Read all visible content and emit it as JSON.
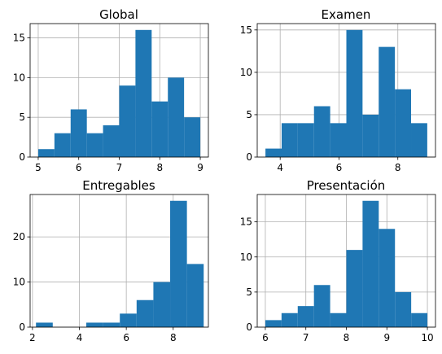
{
  "chart_data": [
    {
      "type": "bar",
      "title": "Global",
      "xlim": [
        4.8,
        9.2
      ],
      "ylim": [
        0,
        16.8
      ],
      "xticks": [
        5,
        6,
        7,
        8,
        9
      ],
      "yticks": [
        0,
        5,
        10,
        15
      ],
      "bins": [
        5.0,
        5.4,
        5.8,
        6.2,
        6.6,
        7.0,
        7.4,
        7.8,
        8.2,
        8.6,
        9.0
      ],
      "counts": [
        1,
        3,
        6,
        3,
        4,
        9,
        16,
        7,
        10,
        5
      ],
      "grid": true
    },
    {
      "type": "bar",
      "title": "Examen",
      "xlim": [
        3.22,
        9.28
      ],
      "ylim": [
        0,
        15.75
      ],
      "xticks": [
        4,
        6,
        8
      ],
      "yticks": [
        0,
        5,
        10,
        15
      ],
      "bins": [
        3.5,
        4.05,
        4.6,
        5.15,
        5.7,
        6.25,
        6.8,
        7.35,
        7.9,
        8.45,
        9.0
      ],
      "counts": [
        1,
        4,
        4,
        6,
        4,
        15,
        5,
        13,
        8,
        4
      ],
      "grid": true
    },
    {
      "type": "bar",
      "title": "Entregables",
      "xlim": [
        1.9,
        9.5
      ],
      "ylim": [
        0,
        29.4
      ],
      "xticks": [
        2,
        4,
        6,
        8
      ],
      "yticks": [
        0,
        10,
        20
      ],
      "bins": [
        2.15,
        2.865,
        3.58,
        4.295,
        5.01,
        5.725,
        6.44,
        7.155,
        7.87,
        8.585,
        9.3
      ],
      "counts": [
        1,
        0,
        0,
        1,
        1,
        3,
        6,
        10,
        28,
        14
      ],
      "grid": true
    },
    {
      "type": "bar",
      "title": "Presentación",
      "xlim": [
        5.8,
        10.2
      ],
      "ylim": [
        0,
        18.9
      ],
      "xticks": [
        6,
        7,
        8,
        9,
        10
      ],
      "yticks": [
        0,
        5,
        10,
        15
      ],
      "bins": [
        6.0,
        6.4,
        6.8,
        7.2,
        7.6,
        8.0,
        8.4,
        8.8,
        9.2,
        9.6,
        10.0
      ],
      "counts": [
        1,
        2,
        3,
        6,
        2,
        11,
        18,
        14,
        5,
        2
      ],
      "grid": true
    }
  ],
  "colors": {
    "bar": "#1f77b4",
    "grid": "#b0b0b0",
    "axis": "#000000"
  }
}
